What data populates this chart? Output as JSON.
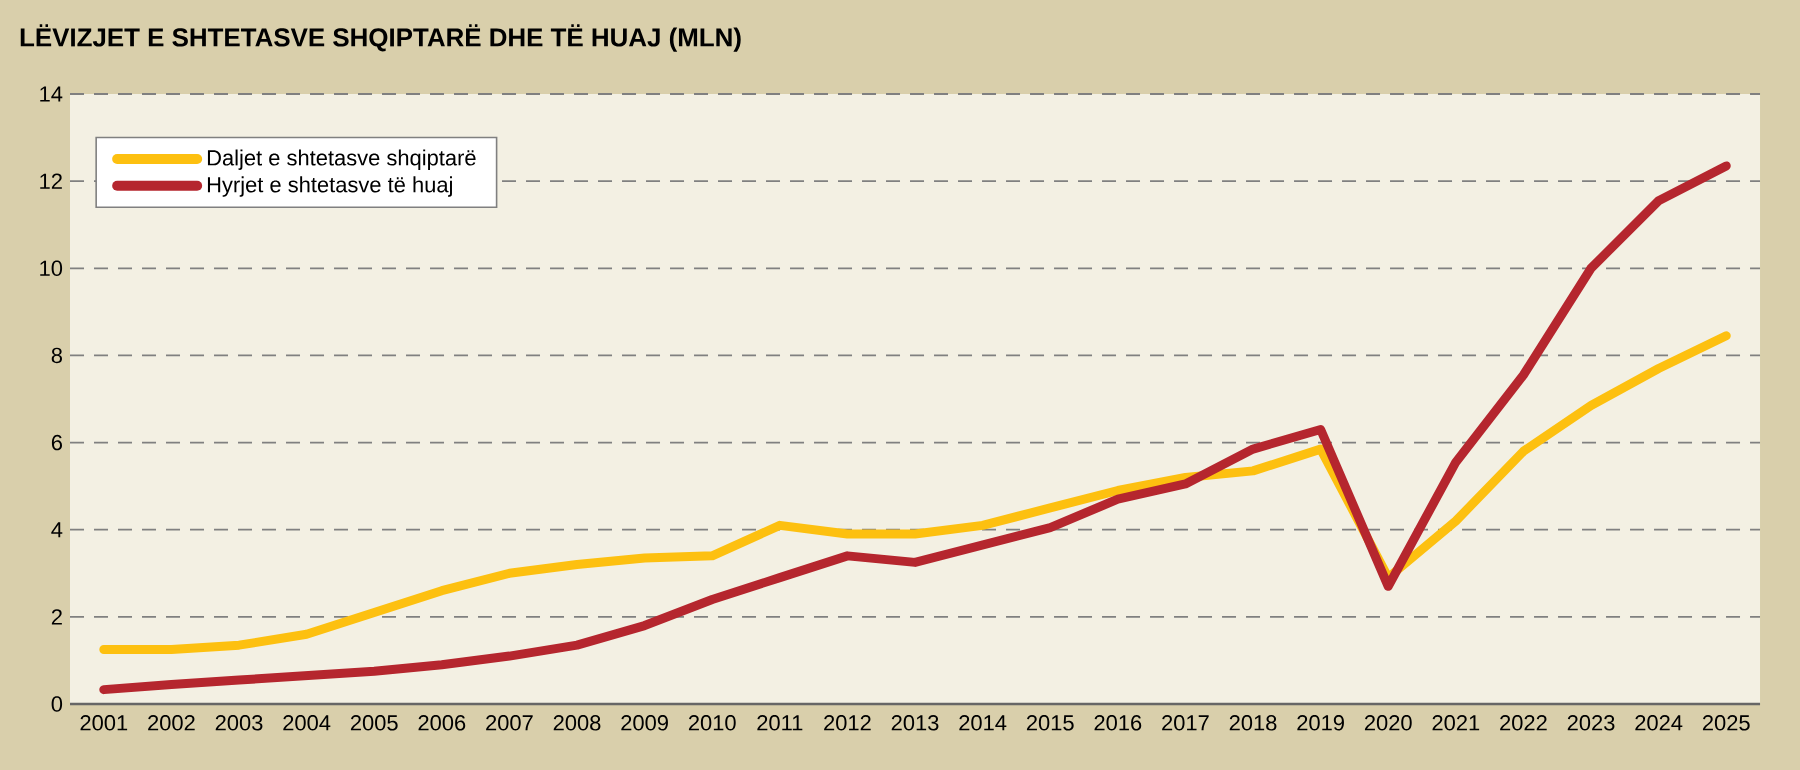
{
  "chart_data": {
    "type": "line",
    "title": "LËVIZJET E SHTETASVE SHQIPTARË DHE TË HUAJ (MLN)",
    "categories": [
      "2001",
      "2002",
      "2003",
      "2004",
      "2005",
      "2006",
      "2007",
      "2008",
      "2009",
      "2010",
      "2011",
      "2012",
      "2013",
      "2014",
      "2015",
      "2016",
      "2017",
      "2018",
      "2019",
      "2020",
      "2021",
      "2022",
      "2023",
      "2024",
      "2025"
    ],
    "series": [
      {
        "name": "Daljet e shtetasve shqiptarë",
        "color": "#fdc010",
        "values": [
          1.25,
          1.25,
          1.35,
          1.6,
          2.1,
          2.6,
          3.0,
          3.2,
          3.35,
          3.4,
          4.1,
          3.9,
          3.9,
          4.1,
          4.5,
          4.9,
          5.2,
          5.35,
          5.85,
          2.9,
          4.2,
          5.8,
          6.85,
          7.7,
          8.45
        ]
      },
      {
        "name": "Hyrjet e shtetasve të huaj",
        "color": "#b5262e",
        "values": [
          0.33,
          0.45,
          0.55,
          0.65,
          0.75,
          0.9,
          1.1,
          1.35,
          1.8,
          2.4,
          2.9,
          3.4,
          3.25,
          3.65,
          4.05,
          4.7,
          5.05,
          5.85,
          6.3,
          2.7,
          5.55,
          7.55,
          10.0,
          11.55,
          12.35
        ]
      }
    ],
    "ylim": [
      0,
      14
    ],
    "yticks": [
      0,
      2,
      4,
      6,
      8,
      10,
      12,
      14
    ],
    "grid": "y",
    "legend": "top left",
    "marker": "none",
    "line_style": "solid"
  }
}
